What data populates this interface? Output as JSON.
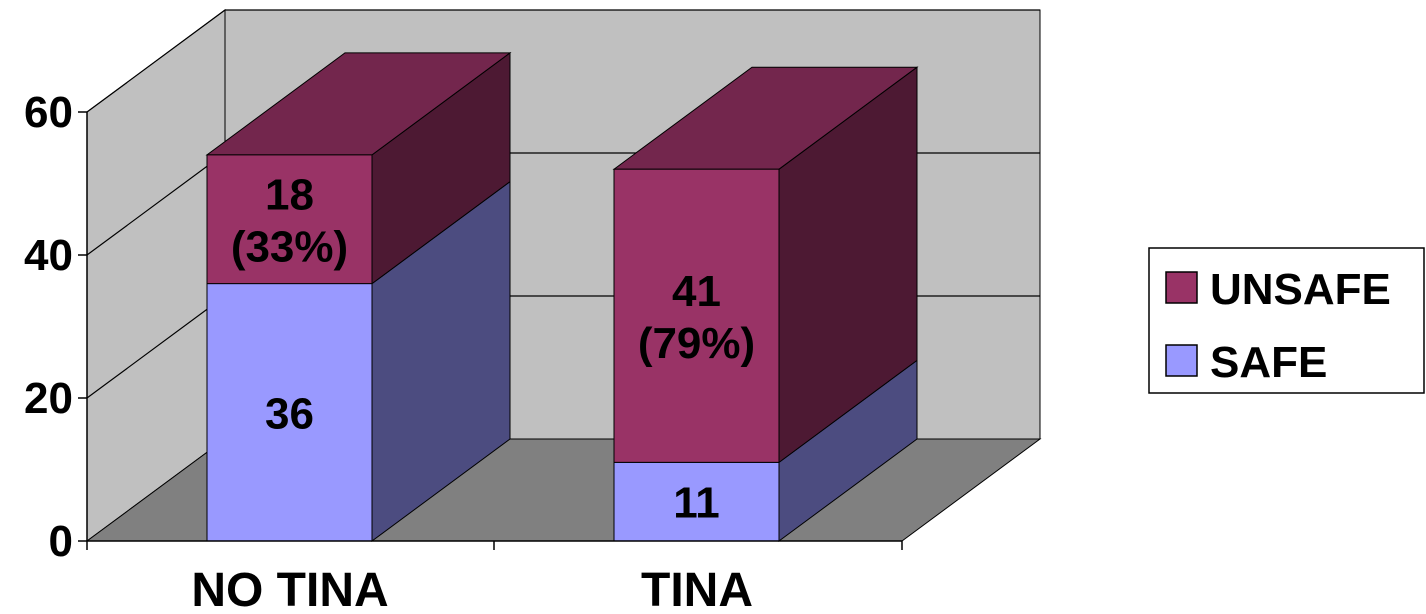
{
  "chart_data": {
    "type": "bar",
    "stacked": true,
    "three_d": true,
    "categories": [
      "NO TINA",
      "TINA"
    ],
    "series": [
      {
        "name": "SAFE",
        "values": [
          36,
          11
        ],
        "labels": [
          "36",
          "11"
        ],
        "color": "#9999ff"
      },
      {
        "name": "UNSAFE",
        "values": [
          18,
          41
        ],
        "labels": [
          "18\n(33%)",
          "41\n(79%)"
        ],
        "color": "#993366"
      }
    ],
    "y_ticks": [
      "0",
      "20",
      "40",
      "60"
    ],
    "ylim": [
      0,
      60
    ],
    "grid": true,
    "legend_position": "right",
    "legend_order": [
      "UNSAFE",
      "SAFE"
    ],
    "colors": {
      "wall": "#c0c0c0",
      "floor": "#808080",
      "safe_front": "#9999ff",
      "safe_side": "#4c4c80",
      "unsafe_front": "#993366",
      "unsafe_side": "#4d1933",
      "unsafe_top": "#73264d"
    }
  }
}
